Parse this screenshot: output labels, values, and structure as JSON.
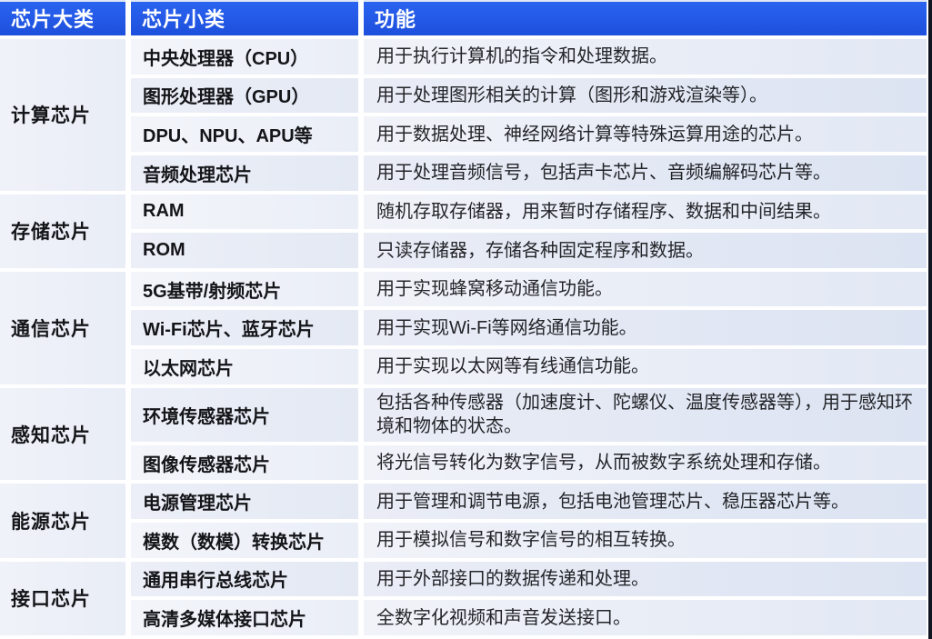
{
  "header": {
    "category": "芯片大类",
    "subtype": "芯片小类",
    "function": "功能"
  },
  "colors": {
    "header_blue": "#1f55e0",
    "row_light": "#f1f3f9",
    "row_dark": "#e2e8f4",
    "separator": "#ffffff",
    "edge_dark": "#10141f",
    "header_text": "#ffffff",
    "body_text": "#141519"
  },
  "groups": [
    {
      "category": "计算芯片",
      "rows": [
        {
          "subtype": "中央处理器（CPU）",
          "function": "用于执行计算机的指令和处理数据。"
        },
        {
          "subtype": "图形处理器（GPU）",
          "function": "用于处理图形相关的计算（图形和游戏渲染等）。"
        },
        {
          "subtype": "DPU、NPU、APU等",
          "function": "用于数据处理、神经网络计算等特殊运算用途的芯片。"
        },
        {
          "subtype": "音频处理芯片",
          "function": "用于处理音频信号，包括声卡芯片、音频编解码芯片等。"
        }
      ]
    },
    {
      "category": "存储芯片",
      "rows": [
        {
          "subtype": "RAM",
          "function": "随机存取存储器，用来暂时存储程序、数据和中间结果。"
        },
        {
          "subtype": "ROM",
          "function": "只读存储器，存储各种固定程序和数据。"
        }
      ]
    },
    {
      "category": "通信芯片",
      "rows": [
        {
          "subtype": "5G基带/射频芯片",
          "function": "用于实现蜂窝移动通信功能。"
        },
        {
          "subtype": "Wi-Fi芯片、蓝牙芯片",
          "function": "用于实现Wi-Fi等网络通信功能。"
        },
        {
          "subtype": "以太网芯片",
          "function": "用于实现以太网等有线通信功能。"
        }
      ]
    },
    {
      "category": "感知芯片",
      "rows": [
        {
          "subtype": "环境传感器芯片",
          "function": "包括各种传感器（加速度计、陀螺仪、温度传感器等），用于感知环境和物体的状态。"
        },
        {
          "subtype": "图像传感器芯片",
          "function": "将光信号转化为数字信号，从而被数字系统处理和存储。"
        }
      ]
    },
    {
      "category": "能源芯片",
      "rows": [
        {
          "subtype": "电源管理芯片",
          "function": "用于管理和调节电源，包括电池管理芯片、稳压器芯片等。"
        },
        {
          "subtype": "模数（数模）转换芯片",
          "function": "用于模拟信号和数字信号的相互转换。"
        }
      ]
    },
    {
      "category": "接口芯片",
      "rows": [
        {
          "subtype": "通用串行总线芯片",
          "function": "用于外部接口的数据传递和处理。"
        },
        {
          "subtype": "高清多媒体接口芯片",
          "function": "全数字化视频和声音发送接口。"
        }
      ]
    }
  ]
}
